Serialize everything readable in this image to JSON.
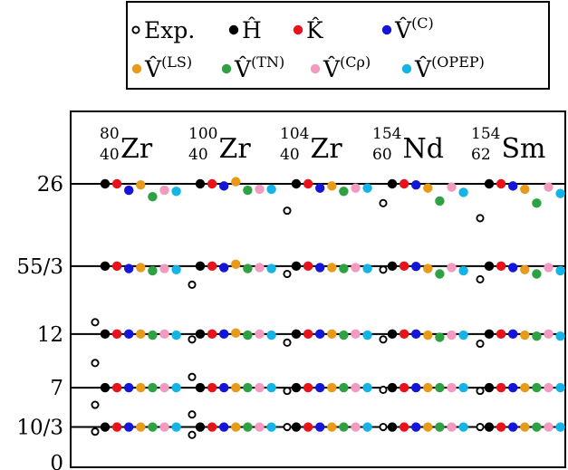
{
  "chart_data": {
    "type": "scatter",
    "title": "",
    "xlabel": "",
    "ylabel": "",
    "ylim": [
      0,
      28.5
    ],
    "grid": "horizontal lines at each level",
    "legend_placement": "top-center",
    "legend": {
      "row1": [
        {
          "key": "exp",
          "label": "Exp."
        },
        {
          "key": "H",
          "label": "Ĥ"
        },
        {
          "key": "K",
          "label": "K̂"
        },
        {
          "key": "VC",
          "label": "V̂",
          "sup": "(C)"
        }
      ],
      "row2": [
        {
          "key": "VLS",
          "label": "V̂",
          "sup": "(LS)"
        },
        {
          "key": "VTN",
          "label": "V̂",
          "sup": "(TN)"
        },
        {
          "key": "VCrho",
          "label": "V̂",
          "sup": "(Cρ)"
        },
        {
          "key": "VOPEP",
          "label": "V̂",
          "sup": "(OPEP)"
        }
      ]
    },
    "colors": {
      "exp": "#000000",
      "H": "#000000",
      "K": "#e8121b",
      "VC": "#1515d9",
      "VLS": "#e89a1a",
      "VTN": "#2ea142",
      "VCrho": "#f29ac0",
      "VOPEP": "#14b4e6"
    },
    "series_order": [
      "H",
      "K",
      "VC",
      "VLS",
      "VTN",
      "VCrho",
      "VOPEP"
    ],
    "y_ticks": [
      {
        "value": 0,
        "label": "0"
      },
      {
        "value": 3.333,
        "label": "10/3"
      },
      {
        "value": 7,
        "label": "7"
      },
      {
        "value": 12,
        "label": "12"
      },
      {
        "value": 18.333,
        "label": "55/3"
      },
      {
        "value": 26,
        "label": "26"
      }
    ],
    "nuclei": [
      {
        "mass": "80",
        "charge": "40",
        "symbol": "Zr",
        "exp": [
          2.9,
          5.4,
          9.3,
          13.1
        ],
        "theory": [
          [
            3.333,
            3.333,
            3.333,
            3.333,
            3.333,
            3.333,
            3.333
          ],
          [
            7,
            7,
            7,
            7,
            7,
            7,
            7
          ],
          [
            12,
            12,
            12,
            12,
            11.9,
            12,
            11.9
          ],
          [
            18.333,
            18.333,
            18.1,
            18.2,
            17.9,
            18.1,
            18.0
          ],
          [
            26,
            26,
            25.4,
            25.9,
            24.8,
            25.4,
            25.3
          ]
        ]
      },
      {
        "mass": "100",
        "charge": "40",
        "symbol": "Zr",
        "exp": [
          2.6,
          4.5,
          8.0,
          11.5,
          16.6
        ],
        "theory": [
          [
            3.333,
            3.333,
            3.333,
            3.333,
            3.333,
            3.333,
            3.333
          ],
          [
            7,
            7,
            7,
            7,
            7,
            7,
            7
          ],
          [
            12,
            12,
            12,
            12.1,
            11.9,
            12,
            11.9
          ],
          [
            18.333,
            18.333,
            18.2,
            18.5,
            18.1,
            18.2,
            18.1
          ],
          [
            26,
            26,
            25.8,
            26.2,
            25.4,
            25.5,
            25.5
          ]
        ]
      },
      {
        "mass": "104",
        "charge": "40",
        "symbol": "Zr",
        "exp": [
          3.333,
          6.7,
          11.2,
          17.6,
          23.5
        ],
        "theory": [
          [
            3.333,
            3.333,
            3.333,
            3.333,
            3.333,
            3.333,
            3.333
          ],
          [
            7,
            7,
            7,
            7,
            7,
            7,
            7
          ],
          [
            12,
            12,
            12,
            12,
            11.9,
            12,
            11.9
          ],
          [
            18.333,
            18.333,
            18.2,
            18.2,
            18.1,
            18.2,
            18.1
          ],
          [
            26,
            26,
            25.6,
            25.8,
            25.3,
            25.6,
            25.6
          ]
        ]
      },
      {
        "mass": "154",
        "charge": "60",
        "symbol": "Nd",
        "exp": [
          3.333,
          6.8,
          11.5,
          18.0,
          24.2
        ],
        "theory": [
          [
            3.333,
            3.333,
            3.333,
            3.333,
            3.333,
            3.333,
            3.333
          ],
          [
            7,
            7,
            7,
            7,
            7,
            7,
            7
          ],
          [
            12,
            12,
            12,
            11.9,
            11.7,
            11.9,
            11.9
          ],
          [
            18.333,
            18.333,
            18.3,
            18.1,
            17.6,
            18.2,
            17.9
          ],
          [
            26,
            26,
            25.9,
            25.6,
            24.4,
            25.7,
            25.2
          ]
        ]
      },
      {
        "mass": "154",
        "charge": "62",
        "symbol": "Sm",
        "exp": [
          3.333,
          6.7,
          11.1,
          17.1,
          22.8
        ],
        "theory": [
          [
            3.333,
            3.333,
            3.333,
            3.333,
            3.333,
            3.333,
            3.333
          ],
          [
            7,
            7,
            7,
            7,
            7,
            7,
            7
          ],
          [
            12,
            12,
            12,
            11.9,
            11.8,
            12,
            11.8
          ],
          [
            18.333,
            18.333,
            18.2,
            18.0,
            17.6,
            18.2,
            17.9
          ],
          [
            26,
            26,
            25.8,
            25.5,
            24.2,
            25.7,
            25.1
          ]
        ]
      }
    ]
  }
}
